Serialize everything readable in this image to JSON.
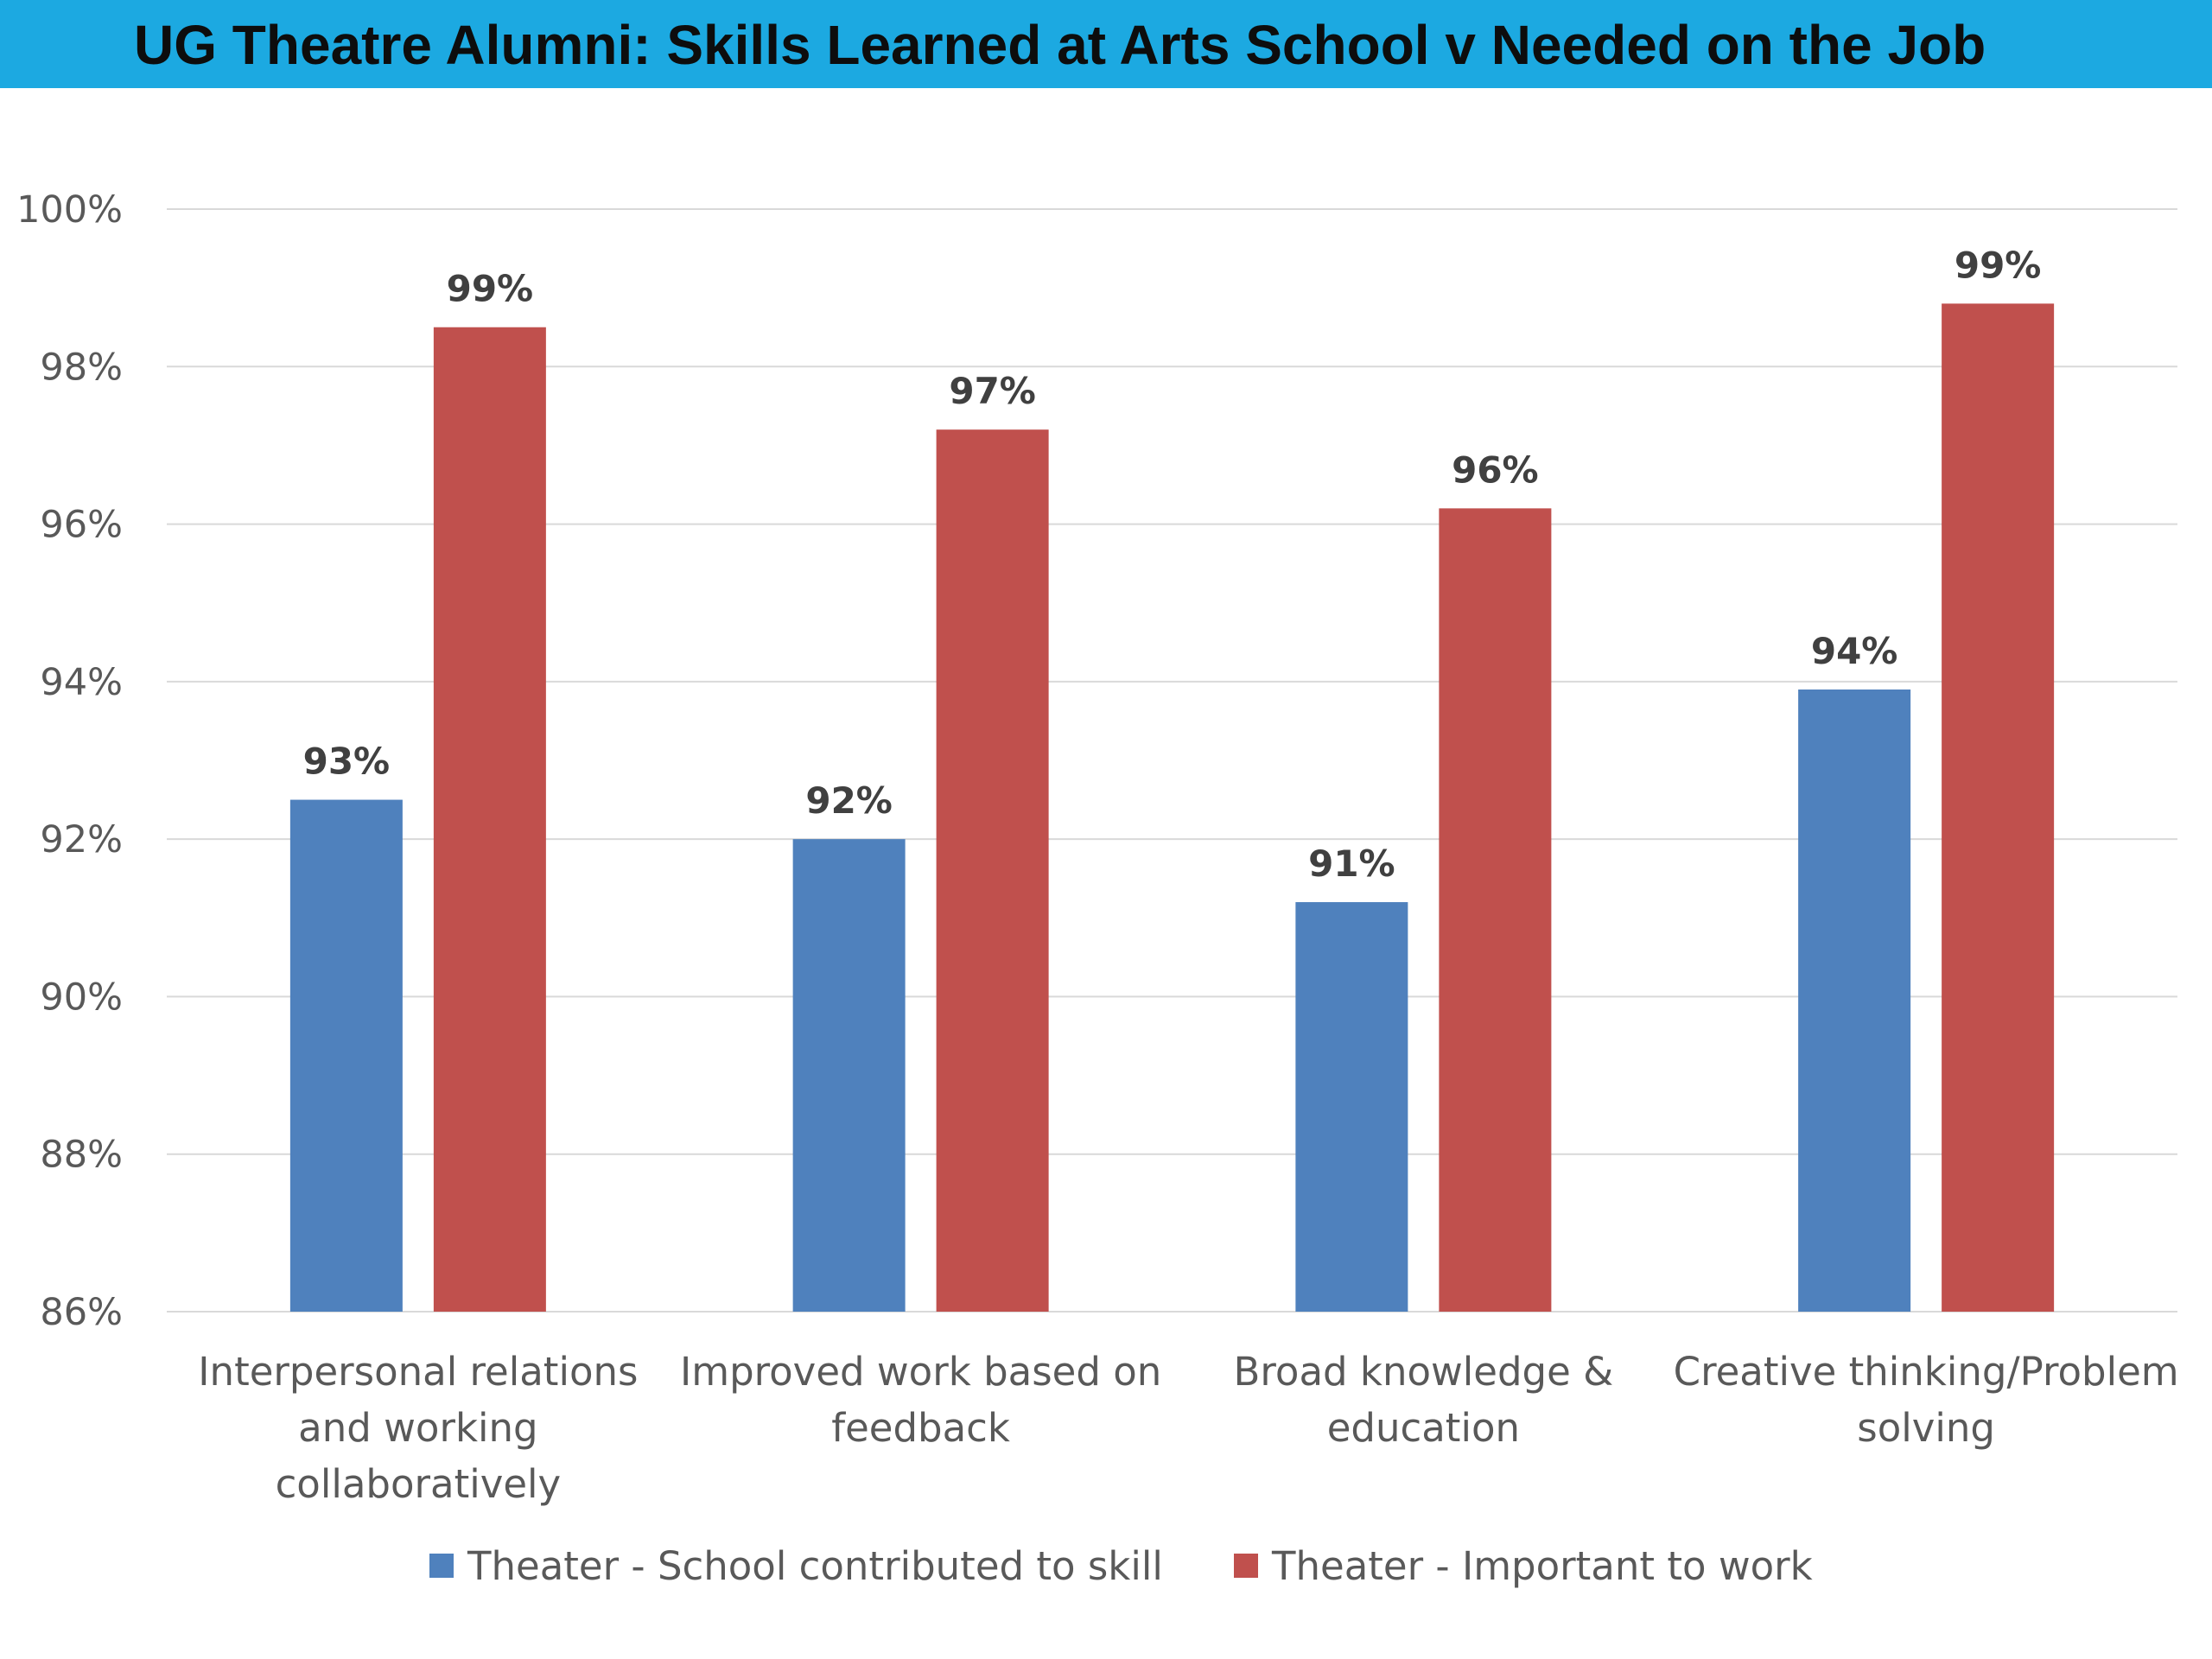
{
  "title": "UG Theatre Alumni: Skills Learned at Arts School v Needed on the Job",
  "colors": {
    "title_bar": "#1ca9e1",
    "series_school": "#4f81bd",
    "series_work": "#c0504d",
    "grid": "#d9d9d9"
  },
  "chart_data": {
    "type": "bar",
    "title": "UG Theatre Alumni: Skills Learned at Arts School v Needed on the Job",
    "categories": [
      [
        "Interpersonal relations",
        "and working",
        "collaboratively"
      ],
      [
        "Improved work based on",
        "feedback"
      ],
      [
        "Broad knowledge &",
        "education"
      ],
      [
        "Creative thinking/Problem",
        "solving"
      ]
    ],
    "series": [
      {
        "name": "Theater - School contributed to skill",
        "color": "#4f81bd",
        "values": [
          92.5,
          92.0,
          91.2,
          93.9
        ],
        "labels": [
          "93%",
          "92%",
          "91%",
          "94%"
        ]
      },
      {
        "name": "Theater - Important to work",
        "color": "#c0504d",
        "values": [
          98.5,
          97.2,
          96.2,
          98.8
        ],
        "labels": [
          "99%",
          "97%",
          "96%",
          "99%"
        ]
      }
    ],
    "ylim": [
      86,
      100
    ],
    "yticks": [
      86,
      88,
      90,
      92,
      94,
      96,
      98,
      100
    ],
    "ytick_labels": [
      "86%",
      "88%",
      "90%",
      "92%",
      "94%",
      "96%",
      "98%",
      "100%"
    ],
    "grid": true,
    "legend": "bottom"
  }
}
